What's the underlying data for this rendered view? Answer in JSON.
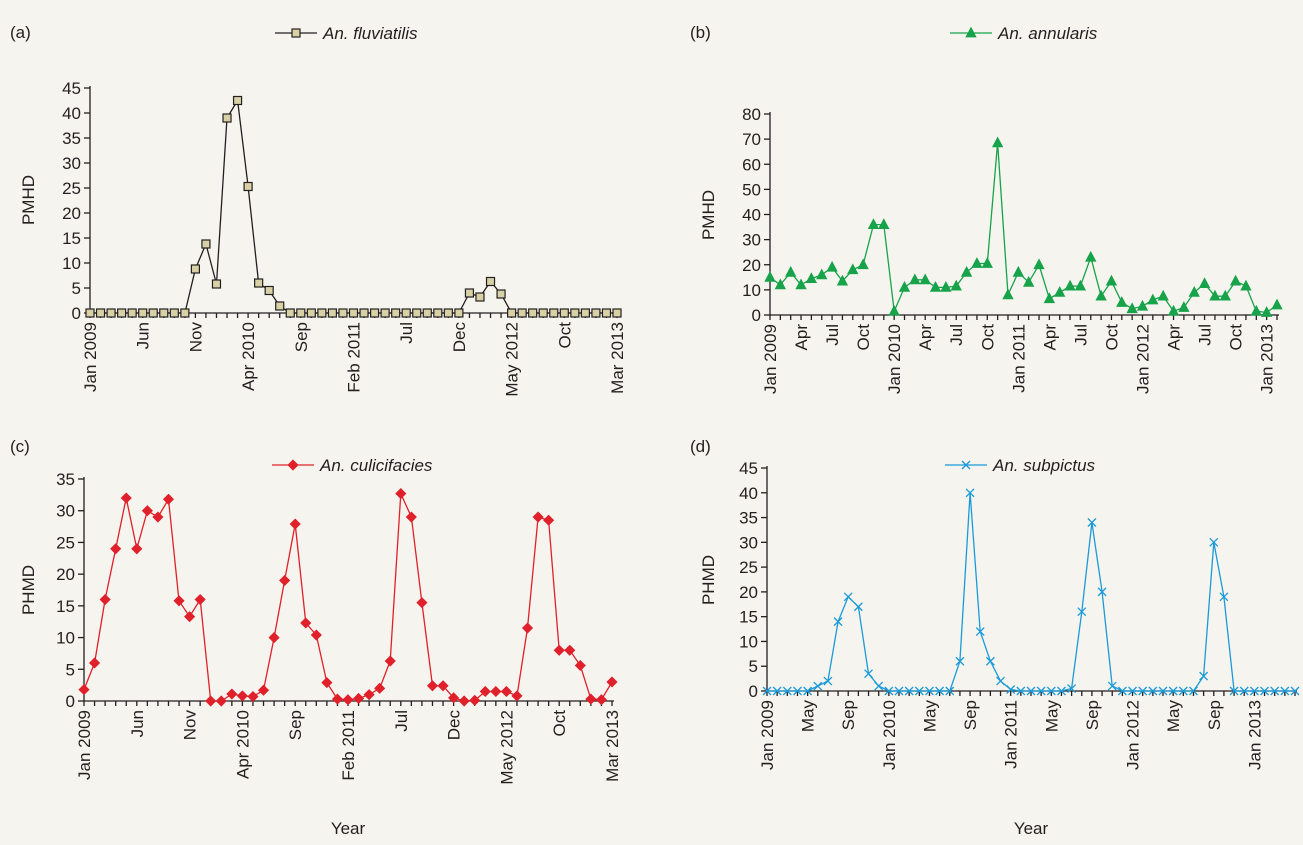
{
  "chart_data": [
    {
      "panel": "(a)",
      "type": "line",
      "ylabel": "PMHD",
      "xlabel": "",
      "ylim": [
        0,
        45
      ],
      "yticks": [
        0,
        5,
        10,
        15,
        20,
        25,
        30,
        35,
        40,
        45
      ],
      "marker": "square",
      "color": "#231f20",
      "marker_fill": "#d8d1a6",
      "legend_placement": "top-center",
      "x_tick_labels": [
        {
          "i": 0,
          "label": "Jan 2009"
        },
        {
          "i": 5,
          "label": "Jun"
        },
        {
          "i": 10,
          "label": "Nov"
        },
        {
          "i": 15,
          "label": "Apr 2010"
        },
        {
          "i": 20,
          "label": "Sep"
        },
        {
          "i": 25,
          "label": "Feb 2011"
        },
        {
          "i": 30,
          "label": "Jul"
        },
        {
          "i": 35,
          "label": "Dec"
        },
        {
          "i": 40,
          "label": "May 2012"
        },
        {
          "i": 45,
          "label": "Oct"
        },
        {
          "i": 50,
          "label": "Mar 2013"
        }
      ],
      "series": [
        {
          "name": "An. fluviatilis",
          "values": [
            0,
            0,
            0,
            0,
            0,
            0,
            0,
            0,
            0,
            0,
            8.8,
            13.8,
            5.8,
            39,
            42.5,
            25.3,
            6,
            4.5,
            1.4,
            0,
            0,
            0,
            0,
            0,
            0,
            0,
            0,
            0,
            0,
            0,
            0,
            0,
            0,
            0,
            0,
            0,
            4,
            3.2,
            6.3,
            3.8,
            0,
            0,
            0,
            0,
            0,
            0,
            0,
            0,
            0,
            0,
            0
          ]
        }
      ]
    },
    {
      "panel": "(b)",
      "type": "line",
      "ylabel": "PMHD",
      "xlabel": "",
      "ylim": [
        0,
        80
      ],
      "yticks": [
        0,
        10,
        20,
        30,
        40,
        50,
        60,
        70,
        80
      ],
      "marker": "triangle",
      "color": "#16a34a",
      "marker_fill": "#16a34a",
      "legend_placement": "top-center",
      "x_tick_labels": [
        {
          "i": 0,
          "label": "Jan 2009"
        },
        {
          "i": 3,
          "label": "Apr"
        },
        {
          "i": 6,
          "label": "Jul"
        },
        {
          "i": 9,
          "label": "Oct"
        },
        {
          "i": 12,
          "label": "Jan 2010"
        },
        {
          "i": 15,
          "label": "Apr"
        },
        {
          "i": 18,
          "label": "Jul"
        },
        {
          "i": 21,
          "label": "Oct"
        },
        {
          "i": 24,
          "label": "Jan 2011"
        },
        {
          "i": 27,
          "label": "Apr"
        },
        {
          "i": 30,
          "label": "Jul"
        },
        {
          "i": 33,
          "label": "Oct"
        },
        {
          "i": 36,
          "label": "Jan 2012"
        },
        {
          "i": 39,
          "label": "Apr"
        },
        {
          "i": 42,
          "label": "Jul"
        },
        {
          "i": 45,
          "label": "Oct"
        },
        {
          "i": 48,
          "label": "Jan 2013"
        }
      ],
      "series": [
        {
          "name": "An. annularis",
          "values": [
            15,
            12,
            17,
            12,
            14.5,
            16,
            19,
            13.5,
            18,
            20,
            36,
            36,
            1.5,
            11,
            14,
            14,
            11,
            11,
            11.5,
            17,
            20.5,
            20.5,
            68.5,
            8,
            17,
            13,
            20,
            6.5,
            9,
            11.5,
            11.5,
            23,
            7.5,
            13.5,
            5,
            2.5,
            3.5,
            6,
            7.5,
            1.5,
            3,
            9,
            12.5,
            7.5,
            7.5,
            13.5,
            11.5,
            1.5,
            1,
            4
          ]
        }
      ]
    },
    {
      "panel": "(c)",
      "type": "line",
      "ylabel": "PHMD",
      "xlabel": "Year",
      "ylim": [
        0,
        35
      ],
      "yticks": [
        0,
        5,
        10,
        15,
        20,
        25,
        30,
        35
      ],
      "marker": "diamond",
      "color": "#e0202a",
      "marker_fill": "#e0202a",
      "legend_placement": "top-center",
      "x_tick_labels": [
        {
          "i": 0,
          "label": "Jan 2009"
        },
        {
          "i": 5,
          "label": "Jun"
        },
        {
          "i": 10,
          "label": "Nov"
        },
        {
          "i": 15,
          "label": "Apr 2010"
        },
        {
          "i": 20,
          "label": "Sep"
        },
        {
          "i": 25,
          "label": "Feb 2011"
        },
        {
          "i": 30,
          "label": "Jul"
        },
        {
          "i": 35,
          "label": "Dec"
        },
        {
          "i": 40,
          "label": "May 2012"
        },
        {
          "i": 45,
          "label": "Oct"
        },
        {
          "i": 50,
          "label": "Mar 2013"
        }
      ],
      "series": [
        {
          "name": "An. culicifacies",
          "values": [
            1.8,
            6,
            16,
            24,
            32,
            24,
            30,
            29,
            31.8,
            15.8,
            13.3,
            16,
            0,
            0,
            1.1,
            0.8,
            0.7,
            1.7,
            10,
            19,
            27.9,
            12.3,
            10.4,
            2.9,
            0.3,
            0.2,
            0.4,
            1,
            2,
            6.3,
            32.7,
            29,
            15.5,
            2.4,
            2.4,
            0.5,
            0,
            0.1,
            1.5,
            1.5,
            1.5,
            0.8,
            11.5,
            29,
            28.5,
            8,
            8,
            5.6,
            0.3,
            0.2,
            3
          ]
        }
      ]
    },
    {
      "panel": "(d)",
      "type": "line",
      "ylabel": "PHMD",
      "xlabel": "Year",
      "ylim": [
        0,
        45
      ],
      "yticks": [
        0,
        5,
        10,
        15,
        20,
        25,
        30,
        35,
        40,
        45
      ],
      "marker": "x",
      "color": "#1a9ad9",
      "marker_fill": "#1a9ad9",
      "legend_placement": "top-center",
      "x_tick_labels": [
        {
          "i": 0,
          "label": "Jan 2009"
        },
        {
          "i": 4,
          "label": "May"
        },
        {
          "i": 8,
          "label": "Sep"
        },
        {
          "i": 12,
          "label": "Jan 2010"
        },
        {
          "i": 16,
          "label": "May"
        },
        {
          "i": 20,
          "label": "Sep"
        },
        {
          "i": 24,
          "label": "Jan 2011"
        },
        {
          "i": 28,
          "label": "May"
        },
        {
          "i": 32,
          "label": "Sep"
        },
        {
          "i": 36,
          "label": "Jan 2012"
        },
        {
          "i": 40,
          "label": "May"
        },
        {
          "i": 44,
          "label": "Sep"
        },
        {
          "i": 48,
          "label": "Jan 2013"
        }
      ],
      "series": [
        {
          "name": "An. subpictus",
          "values": [
            0,
            0,
            0,
            0,
            0,
            1,
            2,
            14,
            19,
            17,
            3.5,
            1,
            0,
            0,
            0,
            0,
            0,
            0,
            0,
            6,
            40,
            12,
            6,
            2,
            0.3,
            0,
            0,
            0,
            0,
            0,
            0.5,
            16,
            34,
            20,
            1,
            0,
            0,
            0,
            0,
            0,
            0,
            0,
            0,
            3,
            30,
            19,
            0,
            0,
            0,
            0,
            0,
            0,
            0
          ]
        }
      ]
    }
  ]
}
